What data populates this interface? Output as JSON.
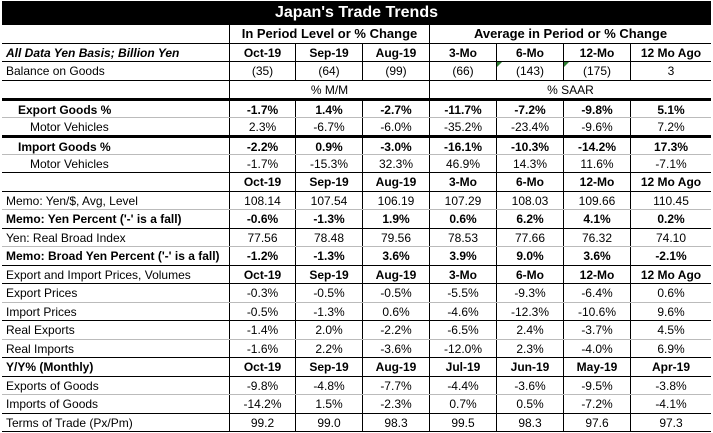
{
  "title": "Japan's Trade Trends",
  "group_headers": {
    "left": "In Period Level or % Change",
    "right": "Average in Period or % Change"
  },
  "col_header_label": "All Data Yen Basis; Billion Yen",
  "columns": [
    "Oct-19",
    "Sep-19",
    "Aug-19",
    "3-Mo",
    "6-Mo",
    "12-Mo",
    "12 Mo Ago"
  ],
  "balance": {
    "label": "Balance on Goods",
    "values": [
      "(35)",
      "(64)",
      "(99)",
      "(66)",
      "(143)",
      "(175)",
      "3"
    ]
  },
  "units_row": {
    "left": "% M/M",
    "right": "% SAAR"
  },
  "export_goods": {
    "label": "Export Goods %",
    "values": [
      "-1.7%",
      "1.4%",
      "-2.7%",
      "-11.7%",
      "-7.2%",
      "-9.8%",
      "5.1%"
    ]
  },
  "export_motor": {
    "label": "Motor Vehicles",
    "values": [
      "2.3%",
      "-6.7%",
      "-6.0%",
      "-35.2%",
      "-23.4%",
      "-9.6%",
      "7.2%"
    ]
  },
  "import_goods": {
    "label": "Import Goods %",
    "values": [
      "-2.2%",
      "0.9%",
      "-3.0%",
      "-16.1%",
      "-10.3%",
      "-14.2%",
      "17.3%"
    ]
  },
  "import_motor": {
    "label": "Motor Vehicles",
    "values": [
      "-1.7%",
      "-15.3%",
      "32.3%",
      "46.9%",
      "14.3%",
      "11.6%",
      "-7.1%"
    ]
  },
  "header2": [
    "Oct-19",
    "Sep-19",
    "Aug-19",
    "3-Mo",
    "6-Mo",
    "12-Mo",
    "12 Mo Ago"
  ],
  "memo_yen_level": {
    "label": "Memo: Yen/$, Avg, Level",
    "values": [
      "108.14",
      "107.54",
      "106.19",
      "107.29",
      "108.03",
      "109.66",
      "110.45"
    ]
  },
  "memo_yen_pct": {
    "label": "Memo: Yen Percent ('-' is a fall)",
    "values": [
      "-0.6%",
      "-1.3%",
      "1.9%",
      "0.6%",
      "6.2%",
      "4.1%",
      "0.2%"
    ]
  },
  "real_broad": {
    "label": "Yen: Real Broad Index",
    "values": [
      "77.56",
      "78.48",
      "79.56",
      "78.53",
      "77.66",
      "76.32",
      "74.10"
    ]
  },
  "memo_broad_pct": {
    "label": "Memo: Broad Yen Percent ('-' is a fall)",
    "values": [
      "-1.2%",
      "-1.3%",
      "3.6%",
      "3.9%",
      "9.0%",
      "3.6%",
      "-2.1%"
    ]
  },
  "header3": {
    "label": "Export and Import Prices, Volumes",
    "values": [
      "Oct-19",
      "Sep-19",
      "Aug-19",
      "3-Mo",
      "6-Mo",
      "12-Mo",
      "12 Mo Ago"
    ]
  },
  "export_prices": {
    "label": "Export Prices",
    "values": [
      "-0.3%",
      "-0.5%",
      "-0.5%",
      "-5.5%",
      "-9.3%",
      "-6.4%",
      "0.6%"
    ]
  },
  "import_prices": {
    "label": "Import Prices",
    "values": [
      "-0.5%",
      "-1.3%",
      "0.6%",
      "-4.6%",
      "-12.3%",
      "-10.6%",
      "9.6%"
    ]
  },
  "real_exports": {
    "label": "Real Exports",
    "values": [
      "-1.4%",
      "2.0%",
      "-2.2%",
      "-6.5%",
      "2.4%",
      "-3.7%",
      "4.5%"
    ]
  },
  "real_imports": {
    "label": "Real Imports",
    "values": [
      "-1.6%",
      "2.2%",
      "-3.6%",
      "-12.0%",
      "2.3%",
      "-4.0%",
      "6.9%"
    ]
  },
  "header4": {
    "label": "Y/Y% (Monthly)",
    "values": [
      "Oct-19",
      "Sep-19",
      "Aug-19",
      "Jul-19",
      "Jun-19",
      "May-19",
      "Apr-19"
    ]
  },
  "exports_goods_yy": {
    "label": "Exports of Goods",
    "values": [
      "-9.8%",
      "-4.8%",
      "-7.7%",
      "-4.4%",
      "-3.6%",
      "-9.5%",
      "-3.8%"
    ]
  },
  "imports_goods_yy": {
    "label": "Imports of Goods",
    "values": [
      "-14.2%",
      "1.5%",
      "-2.3%",
      "0.7%",
      "0.5%",
      "-7.2%",
      "-4.1%"
    ]
  },
  "terms_of_trade": {
    "label": "Terms of Trade (Px/Pm)",
    "values": [
      "99.2",
      "99.0",
      "98.3",
      "99.5",
      "98.3",
      "97.6",
      "97.3"
    ]
  }
}
